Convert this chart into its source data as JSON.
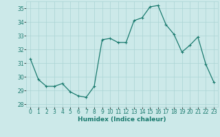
{
  "x": [
    0,
    1,
    2,
    3,
    4,
    5,
    6,
    7,
    8,
    9,
    10,
    11,
    12,
    13,
    14,
    15,
    16,
    17,
    18,
    19,
    20,
    21,
    22,
    23
  ],
  "y": [
    31.3,
    29.8,
    29.3,
    29.3,
    29.5,
    28.9,
    28.6,
    28.5,
    29.3,
    32.7,
    32.8,
    32.5,
    32.5,
    34.1,
    34.3,
    35.1,
    35.2,
    33.8,
    33.1,
    31.8,
    32.3,
    32.9,
    30.9,
    29.6
  ],
  "line_color": "#1a7a6e",
  "marker": "+",
  "marker_size": 3,
  "linewidth": 0.9,
  "bg_color": "#cce9e9",
  "grid_color": "#aad4d4",
  "tick_label_color": "#1a7a6e",
  "xlabel": "Humidex (Indice chaleur)",
  "xlabel_color": "#1a7a6e",
  "ylim": [
    27.8,
    35.5
  ],
  "yticks": [
    28,
    29,
    30,
    31,
    32,
    33,
    34,
    35
  ],
  "xtick_labels": [
    "0",
    "1",
    "2",
    "3",
    "4",
    "5",
    "6",
    "7",
    "8",
    "9",
    "10",
    "11",
    "12",
    "13",
    "14",
    "15",
    "16",
    "17",
    "18",
    "19",
    "20",
    "21",
    "22",
    "23"
  ],
  "axis_fontsize": 5.5,
  "xlabel_fontsize": 6.5,
  "xlabel_fontweight": "bold"
}
